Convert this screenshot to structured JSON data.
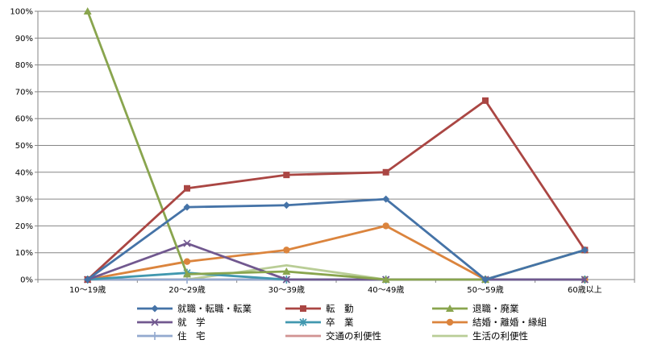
{
  "chart_data": {
    "type": "line",
    "title": "",
    "xlabel": "",
    "ylabel": "",
    "categories": [
      "10～19歳",
      "20～29歳",
      "30～39歳",
      "40～49歳",
      "50～59歳",
      "60歳以上"
    ],
    "y_tick_labels": [
      "0%",
      "10%",
      "20%",
      "30%",
      "40%",
      "50%",
      "60%",
      "70%",
      "80%",
      "90%",
      "100%"
    ],
    "ylim": [
      0,
      100
    ],
    "grid": "horizontal",
    "legend_position": "bottom",
    "series": [
      {
        "name": "就職・転職・転業",
        "color": "#4573A7",
        "marker": "diamond",
        "values": [
          0,
          27,
          27.7,
          30,
          0,
          11
        ]
      },
      {
        "name": "転　勤",
        "color": "#AA4643",
        "marker": "square",
        "values": [
          0,
          34,
          39,
          40,
          66.7,
          11
        ]
      },
      {
        "name": "退職・廃業",
        "color": "#89A54E",
        "marker": "triangle",
        "values": [
          100,
          2,
          3,
          0,
          0,
          11
        ]
      },
      {
        "name": "就　学",
        "color": "#71588F",
        "marker": "x",
        "values": [
          0,
          13.5,
          0,
          0,
          0,
          0
        ]
      },
      {
        "name": "卒　業",
        "color": "#4198AF",
        "marker": "star",
        "values": [
          0,
          2.5,
          0,
          0,
          0,
          0
        ]
      },
      {
        "name": "結婚・離婚・縁組",
        "color": "#DB843D",
        "marker": "circle",
        "values": [
          0,
          6.7,
          11,
          20,
          0,
          0
        ]
      },
      {
        "name": "住　宅",
        "color": "#93A9CF",
        "marker": "plus",
        "values": [
          0,
          0,
          0,
          0,
          0,
          0
        ]
      },
      {
        "name": "交通の利便性",
        "color": "#D19392",
        "marker": "none",
        "values": [
          0,
          0,
          0,
          0,
          0,
          0
        ]
      },
      {
        "name": "生活の利便性",
        "color": "#B9CD96",
        "marker": "none",
        "values": [
          0,
          0,
          5.3,
          0,
          0,
          0
        ]
      }
    ]
  }
}
